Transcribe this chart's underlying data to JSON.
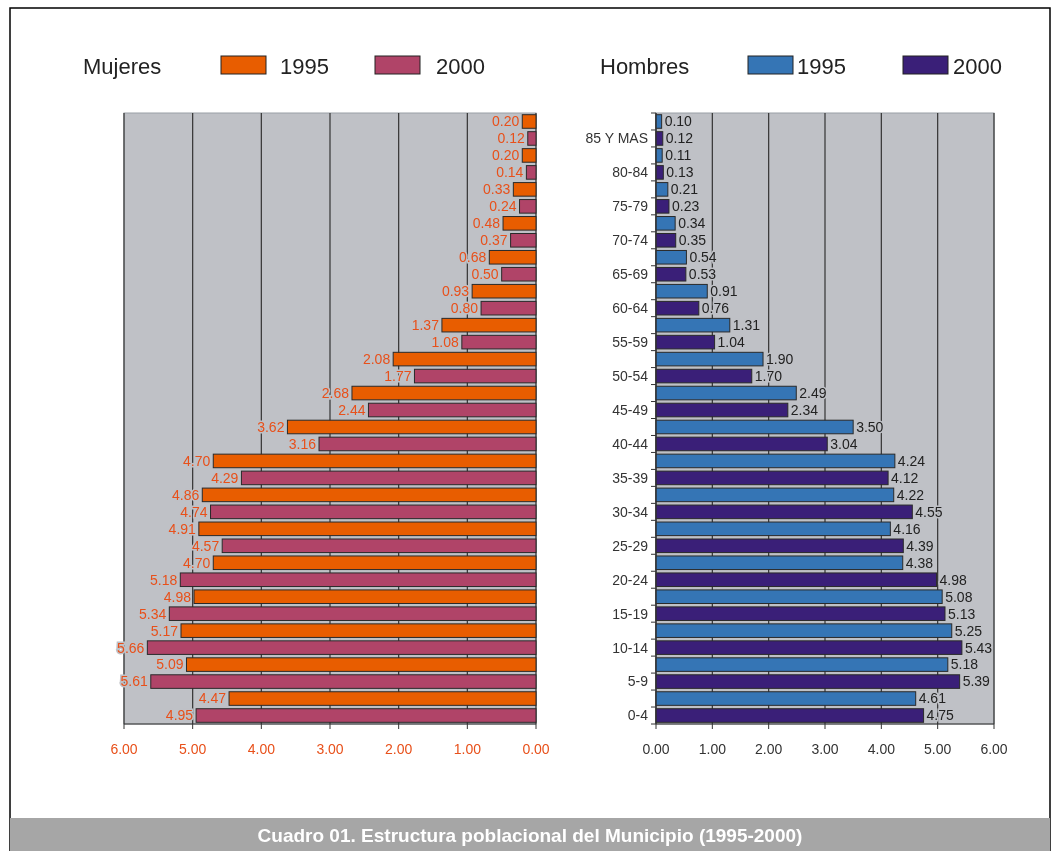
{
  "chart_data": [
    {
      "type": "bar",
      "orientation": "horizontal",
      "legend_title": "Mujeres",
      "legend": "top",
      "grid": "x",
      "tick_labels": "x",
      "categories": [
        null,
        null,
        null,
        null,
        null,
        null,
        null,
        null,
        null,
        null,
        null,
        null,
        null,
        null,
        null,
        null,
        null,
        null
      ],
      "xlim": [
        6,
        0
      ],
      "xticks": [
        {
          "value": 6,
          "label": "6.00"
        },
        {
          "value": 5,
          "label": "5.00"
        },
        {
          "value": 4,
          "label": "4.00"
        },
        {
          "value": 3,
          "label": "3.00"
        },
        {
          "value": 2,
          "label": "2.00"
        },
        {
          "value": 1,
          "label": "1.00"
        },
        {
          "value": 0,
          "label": "0.00"
        }
      ],
      "series": [
        {
          "name": "1995",
          "color": "#e85d00",
          "values": [
            0.2,
            0.2,
            0.33,
            0.48,
            0.68,
            0.93,
            1.37,
            2.08,
            2.68,
            3.62,
            4.7,
            4.86,
            4.91,
            4.7,
            4.98,
            5.17,
            5.09,
            4.47
          ],
          "value_labels": [
            "0.20",
            "0.20",
            "0.33",
            "0.48",
            "0.68",
            "0.93",
            "1.37",
            "2.08",
            "2.68",
            "3.62",
            "4.70",
            "4.86",
            "4.91",
            "4.70",
            "4.98",
            "5.17",
            "5.09",
            "4.47"
          ]
        },
        {
          "name": "2000",
          "color": "#b04468",
          "values": [
            0.12,
            0.14,
            0.24,
            0.37,
            0.5,
            0.8,
            1.08,
            1.77,
            2.44,
            3.16,
            4.29,
            4.74,
            4.57,
            5.18,
            5.34,
            5.66,
            5.61,
            4.95
          ],
          "value_labels": [
            "0.12",
            "0.14",
            "0.24",
            "0.37",
            "0.50",
            "0.80",
            "1.08",
            "1.77",
            "2.44",
            "3.16",
            "4.29",
            "4.74",
            "4.57",
            "5.18",
            "5.34",
            "5.66",
            "5.61",
            "4.95"
          ]
        }
      ],
      "annotations": [
        "Cuadro 01.  Estructura poblacional del Municipio (1995-2000)"
      ]
    },
    {
      "type": "bar",
      "orientation": "horizontal",
      "legend_title": "Hombres",
      "legend": "top",
      "grid": "x",
      "categories": [
        "85 Y MAS",
        "80-84",
        "75-79",
        "70-74",
        "65-69",
        "60-64",
        "55-59",
        "50-54",
        "45-49",
        "40-44",
        "35-39",
        "30-34",
        "25-29",
        "20-24",
        "15-19",
        "10-14",
        "5-9",
        "0-4"
      ],
      "xlim": [
        0,
        6
      ],
      "xticks": [
        {
          "value": 0,
          "label": "0.00"
        },
        {
          "value": 1,
          "label": "1.00"
        },
        {
          "value": 2,
          "label": "2.00"
        },
        {
          "value": 3,
          "label": "3.00"
        },
        {
          "value": 4,
          "label": "4.00"
        },
        {
          "value": 5,
          "label": "5.00"
        },
        {
          "value": 6,
          "label": "6.00"
        }
      ],
      "series": [
        {
          "name": "1995",
          "color": "#3575b5",
          "values": [
            0.1,
            0.11,
            0.21,
            0.34,
            0.54,
            0.91,
            1.31,
            1.9,
            2.49,
            3.5,
            4.24,
            4.22,
            4.16,
            4.38,
            5.08,
            5.25,
            5.18,
            4.61
          ],
          "value_labels": [
            "0.10",
            "0.11",
            "0.21",
            "0.34",
            "0.54",
            "0.91",
            "1.31",
            "1.90",
            "2.49",
            "3.50",
            "4.24",
            "4.22",
            "4.16",
            "4.38",
            "5.08",
            "5.25",
            "5.18",
            "4.61"
          ]
        },
        {
          "name": "2000",
          "color": "#3a1f78",
          "values": [
            0.12,
            0.13,
            0.23,
            0.35,
            0.53,
            0.76,
            1.04,
            1.7,
            2.34,
            3.04,
            4.12,
            4.55,
            4.39,
            4.98,
            5.13,
            5.43,
            5.39,
            4.75
          ],
          "value_labels": [
            "0.12",
            "0.13",
            "0.23",
            "0.35",
            "0.53",
            "0.76",
            "1.04",
            "1.70",
            "2.34",
            "3.04",
            "4.12",
            "4.55",
            "4.39",
            "4.98",
            "5.13",
            "5.43",
            "5.39",
            "4.75"
          ]
        }
      ]
    }
  ]
}
